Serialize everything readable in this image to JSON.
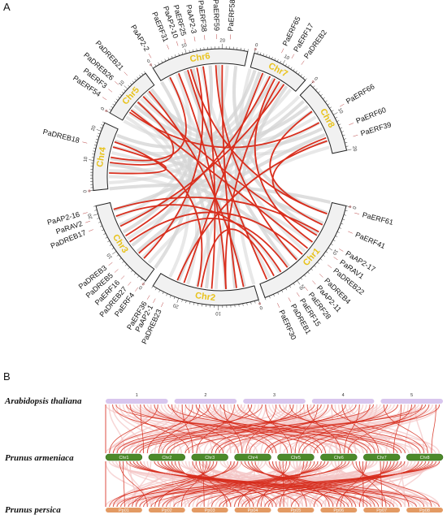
{
  "panels": {
    "a": "A",
    "b": "B"
  },
  "circos": {
    "chromosomes": [
      {
        "name": "Chr1",
        "length": 28,
        "ticks": [
          "0",
          "10",
          "20"
        ]
      },
      {
        "name": "Chr2",
        "length": 27,
        "ticks": [
          "0",
          "10",
          "20"
        ]
      },
      {
        "name": "Chr3",
        "length": 22,
        "ticks": [
          "0",
          "10",
          "20"
        ]
      },
      {
        "name": "Chr4",
        "length": 23,
        "ticks": [
          "0",
          "10",
          "20"
        ]
      },
      {
        "name": "Chr5",
        "length": 18,
        "ticks": [
          "0",
          "10"
        ]
      },
      {
        "name": "Chr6",
        "length": 27,
        "ticks": [
          "0",
          "10",
          "20"
        ]
      },
      {
        "name": "Chr7",
        "length": 19,
        "ticks": [
          "0",
          "10"
        ]
      },
      {
        "name": "Chr8",
        "length": 20,
        "ticks": [
          "0",
          "10",
          "20"
        ]
      }
    ],
    "genes": [
      {
        "label": "PaERF61",
        "chr": 0,
        "pos": 1
      },
      {
        "label": "PaERF41",
        "chr": 0,
        "pos": 5
      },
      {
        "label": "PaAP2-17",
        "chr": 0,
        "pos": 9
      },
      {
        "label": "PaRAV1",
        "chr": 0,
        "pos": 11
      },
      {
        "label": "PaDREB22",
        "chr": 0,
        "pos": 13
      },
      {
        "label": "PaDREB4",
        "chr": 0,
        "pos": 15.5
      },
      {
        "label": "PaAP2-11",
        "chr": 0,
        "pos": 17.5
      },
      {
        "label": "PaERF28",
        "chr": 0,
        "pos": 19.5
      },
      {
        "label": "PaERF15",
        "chr": 0,
        "pos": 21.5
      },
      {
        "label": "PaDREB1",
        "chr": 0,
        "pos": 23.5
      },
      {
        "label": "PaERF30",
        "chr": 0,
        "pos": 26
      },
      {
        "label": "PaDREB23",
        "chr": 1,
        "pos": 23
      },
      {
        "label": "PaAP2-1",
        "chr": 1,
        "pos": 25
      },
      {
        "label": "PaERF36",
        "chr": 1,
        "pos": 26.5
      },
      {
        "label": "PaERF4",
        "chr": 2,
        "pos": 0.5
      },
      {
        "label": "PaDREB27",
        "chr": 2,
        "pos": 2.5
      },
      {
        "label": "PaERF16",
        "chr": 2,
        "pos": 4.5
      },
      {
        "label": "PaDREB5",
        "chr": 2,
        "pos": 6.5
      },
      {
        "label": "PaDREB3",
        "chr": 2,
        "pos": 8.5
      },
      {
        "label": "PaDREB17",
        "chr": 2,
        "pos": 17
      },
      {
        "label": "PaRAV2",
        "chr": 2,
        "pos": 19
      },
      {
        "label": "PaAP2-16",
        "chr": 2,
        "pos": 21
      },
      {
        "label": "PaDREB18",
        "chr": 3,
        "pos": 15
      },
      {
        "label": "PaERF54",
        "chr": 4,
        "pos": 3
      },
      {
        "label": "PaERF3",
        "chr": 4,
        "pos": 6
      },
      {
        "label": "PaDREB26",
        "chr": 4,
        "pos": 9
      },
      {
        "label": "PaDREB21",
        "chr": 4,
        "pos": 13
      },
      {
        "label": "PaAP2-2",
        "chr": 5,
        "pos": 1
      },
      {
        "label": "PaERF31",
        "chr": 5,
        "pos": 6
      },
      {
        "label": "PaAP2-10",
        "chr": 5,
        "pos": 8.5
      },
      {
        "label": "PaERF25",
        "chr": 5,
        "pos": 10.5
      },
      {
        "label": "PaAP2-3",
        "chr": 5,
        "pos": 13
      },
      {
        "label": "PaERF38",
        "chr": 5,
        "pos": 15.5
      },
      {
        "label": "PaERF59",
        "chr": 5,
        "pos": 18.5
      },
      {
        "label": "PaERF58",
        "chr": 5,
        "pos": 22
      },
      {
        "label": "PaERF65",
        "chr": 6,
        "pos": 8
      },
      {
        "label": "PaERF17",
        "chr": 6,
        "pos": 11.5
      },
      {
        "label": "PaDREB2",
        "chr": 6,
        "pos": 15
      },
      {
        "label": "PaERF66",
        "chr": 7,
        "pos": 9
      },
      {
        "label": "PaERF60",
        "chr": 7,
        "pos": 14
      },
      {
        "label": "PaERF39",
        "chr": 7,
        "pos": 17
      }
    ],
    "links": [
      [
        0,
        3,
        5,
        10
      ],
      [
        0,
        8,
        2,
        20
      ],
      [
        0,
        13,
        4,
        5
      ],
      [
        0,
        17,
        5,
        18
      ],
      [
        0,
        20,
        2,
        6
      ],
      [
        0,
        24,
        1,
        15
      ],
      [
        0,
        6,
        7,
        15
      ],
      [
        0,
        11,
        6,
        10
      ],
      [
        1,
        3,
        4,
        15
      ],
      [
        1,
        8,
        5,
        6
      ],
      [
        1,
        16,
        3,
        18
      ],
      [
        1,
        20,
        6,
        5
      ],
      [
        2,
        4,
        5,
        12
      ],
      [
        2,
        15,
        6,
        14
      ],
      [
        2,
        10,
        0,
        15
      ],
      [
        3,
        10,
        4,
        9
      ],
      [
        3,
        16,
        3,
        6
      ],
      [
        4,
        4,
        7,
        10
      ],
      [
        5,
        14,
        1,
        12
      ],
      [
        5,
        9,
        0,
        26
      ],
      [
        6,
        8,
        2,
        12
      ],
      [
        7,
        6,
        0,
        3
      ],
      [
        5,
        20,
        1,
        5
      ],
      [
        4,
        12,
        0,
        9
      ],
      [
        2,
        18,
        0,
        22
      ],
      [
        1,
        22,
        7,
        16
      ],
      [
        6,
        12,
        1,
        8
      ],
      [
        5,
        3,
        3,
        12
      ]
    ],
    "colors": {
      "link": "#d92f1e",
      "background_link": "#d6d6d6",
      "ideogram_fill": "#f1f1f1",
      "chr_label": "#e8c21a"
    }
  },
  "synteny": {
    "species": [
      {
        "name": "Arabidopsis thaliana",
        "color": "#d8c6ee",
        "chromosomes": [
          "1",
          "2",
          "3",
          "4",
          "5"
        ]
      },
      {
        "name": "Prunus armeniaca",
        "color": "#4c8a2a",
        "chromosomes": [
          "Chr1",
          "Chr2",
          "Chr3",
          "Chr4",
          "Chr5",
          "Chr6",
          "Chr7",
          "Chr8"
        ]
      },
      {
        "name": "Prunus persica",
        "color": "#e39a63",
        "chromosomes": [
          "Pp01",
          "Pp02",
          "Pp03",
          "Pp04",
          "Pp05",
          "Pp06",
          "Pp07",
          "Pp08"
        ]
      }
    ],
    "link_color": "#d62a1a",
    "bg_link_color": "#f4c4c4"
  }
}
